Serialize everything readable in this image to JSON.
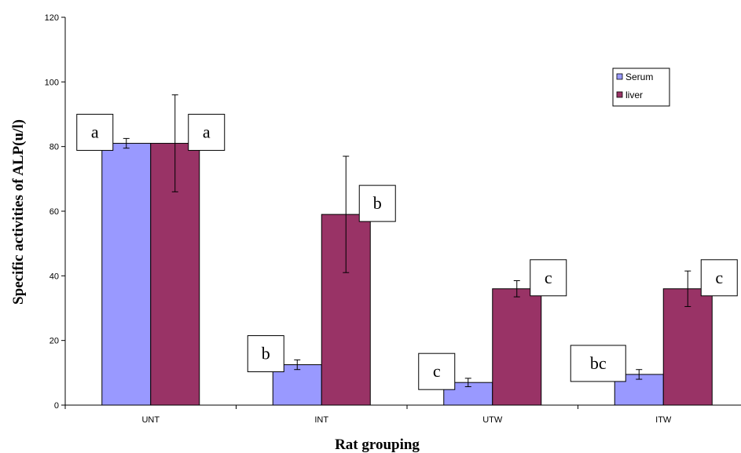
{
  "chart_data": {
    "type": "bar",
    "title": "",
    "xlabel": "Rat grouping",
    "ylabel": "Specific activities of ALP(u/l)",
    "ylim": [
      0,
      120
    ],
    "yticks": [
      0,
      20,
      40,
      60,
      80,
      100,
      120
    ],
    "grid": false,
    "legend_position": "top-right",
    "categories": [
      "UNT",
      "INT",
      "UTW",
      "ITW"
    ],
    "series": [
      {
        "name": "Serum",
        "color": "#9999ff",
        "values": [
          81,
          12.5,
          7,
          9.5
        ],
        "errors": [
          1.5,
          1.5,
          1.3,
          1.5
        ],
        "labels": [
          "a",
          "b",
          "c",
          "bc"
        ]
      },
      {
        "name": "liver",
        "color": "#993366",
        "values": [
          81,
          59,
          36,
          36
        ],
        "errors": [
          15,
          18,
          2.5,
          5.5
        ],
        "labels": [
          "a",
          "b",
          "c",
          "c"
        ]
      }
    ]
  }
}
